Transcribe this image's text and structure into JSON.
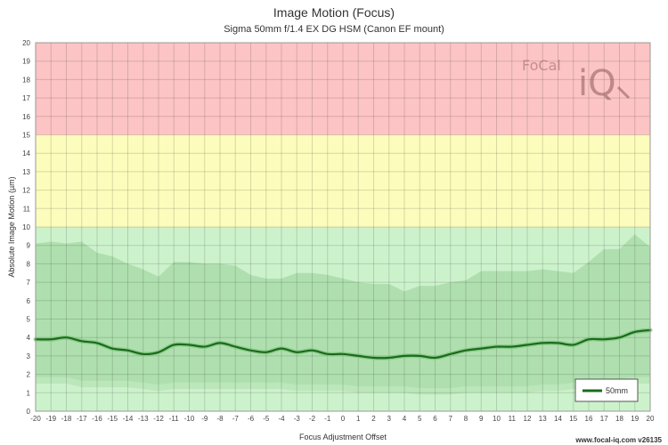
{
  "chart_data": {
    "type": "line",
    "title": "Image Motion (Focus)",
    "subtitle": "Sigma 50mm f/1.4 EX DG HSM (Canon EF mount)",
    "xlabel": "Focus Adjustment Offset",
    "ylabel": "Absolute Image Motion (µm)",
    "xlim": [
      -20,
      20
    ],
    "ylim": [
      0,
      20
    ],
    "x_ticks": [
      -20,
      -19,
      -18,
      -17,
      -16,
      -15,
      -14,
      -13,
      -12,
      -11,
      -10,
      -9,
      -8,
      -7,
      -6,
      -5,
      -4,
      -3,
      -2,
      -1,
      0,
      1,
      2,
      3,
      4,
      5,
      6,
      7,
      8,
      9,
      10,
      11,
      12,
      13,
      14,
      15,
      16,
      17,
      18,
      19,
      20
    ],
    "y_ticks": [
      0,
      1,
      2,
      3,
      4,
      5,
      6,
      7,
      8,
      9,
      10,
      11,
      12,
      13,
      14,
      15,
      16,
      17,
      18,
      19,
      20
    ],
    "grid": true,
    "zones": [
      {
        "from": 0,
        "to": 10,
        "color": "#ccf2cc"
      },
      {
        "from": 10,
        "to": 15,
        "color": "#fcfcbc"
      },
      {
        "from": 15,
        "to": 20,
        "color": "#fcc4c4"
      }
    ],
    "x": [
      -20,
      -19,
      -18,
      -17,
      -16,
      -15,
      -14,
      -13,
      -12,
      -11,
      -10,
      -9,
      -8,
      -7,
      -6,
      -5,
      -4,
      -3,
      -2,
      -1,
      0,
      1,
      2,
      3,
      4,
      5,
      6,
      7,
      8,
      9,
      10,
      11,
      12,
      13,
      14,
      15,
      16,
      17,
      18,
      19,
      20
    ],
    "band_upper": [
      9.1,
      9.2,
      9.1,
      9.2,
      8.6,
      8.4,
      8.0,
      7.7,
      7.3,
      8.1,
      8.1,
      8.0,
      8.0,
      7.9,
      7.4,
      7.2,
      7.2,
      7.5,
      7.5,
      7.4,
      7.2,
      7.0,
      6.9,
      6.9,
      6.5,
      6.8,
      6.8,
      7.0,
      7.1,
      7.6,
      7.6,
      7.6,
      7.6,
      7.7,
      7.6,
      7.5,
      8.1,
      8.8,
      8.8,
      9.6,
      8.9
    ],
    "band_lower": [
      1.5,
      1.5,
      1.5,
      1.3,
      1.3,
      1.3,
      1.3,
      1.2,
      1.1,
      1.2,
      1.2,
      1.2,
      1.2,
      1.2,
      1.2,
      1.2,
      1.2,
      1.1,
      1.1,
      1.1,
      1.1,
      1.0,
      1.0,
      1.0,
      1.0,
      0.9,
      0.9,
      0.9,
      1.0,
      1.0,
      1.0,
      1.0,
      1.0,
      1.1,
      1.1,
      1.2,
      1.3,
      1.4,
      1.4,
      1.5,
      1.5
    ],
    "series": [
      {
        "name": "50mm",
        "color": "#1a6b1a",
        "values": [
          3.9,
          3.9,
          4.0,
          3.8,
          3.7,
          3.4,
          3.3,
          3.1,
          3.2,
          3.6,
          3.6,
          3.5,
          3.7,
          3.5,
          3.3,
          3.2,
          3.4,
          3.2,
          3.3,
          3.1,
          3.1,
          3.0,
          2.9,
          2.9,
          3.0,
          3.0,
          2.9,
          3.1,
          3.3,
          3.4,
          3.5,
          3.5,
          3.6,
          3.7,
          3.7,
          3.6,
          3.9,
          3.9,
          4.0,
          4.3,
          4.4
        ]
      }
    ],
    "legend": "bottom-right",
    "band_colors": {
      "outer": "#b9e6b9",
      "inner": "#a6d8a6"
    }
  },
  "footer": {
    "text": "www.focal-iq.com  v26135"
  },
  "watermark": {
    "top": "FoCal",
    "bottom": "iQ"
  }
}
